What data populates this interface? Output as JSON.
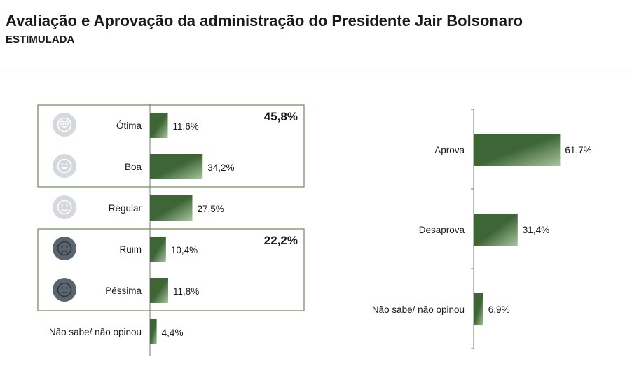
{
  "header": {
    "title": "Avaliação e Aprovação da administração do Presidente Jair Bolsonaro",
    "subtitle": "ESTIMULADA"
  },
  "colors": {
    "bar_dark": "#3d6535",
    "bar_light": "#a9c49e",
    "rule": "#6b8a5a",
    "face_light": "#d5d8dc",
    "face_dark": "#5b6570"
  },
  "chart_data": [
    {
      "type": "bar",
      "orientation": "horizontal",
      "categories": [
        "Ótima",
        "Boa",
        "Regular",
        "Ruim",
        "Péssima",
        "Não sabe/ não opinou"
      ],
      "values": [
        11.6,
        34.2,
        27.5,
        10.4,
        11.8,
        4.4
      ],
      "value_labels": [
        "11,6%",
        "34,2%",
        "27,5%",
        "10,4%",
        "11,8%",
        "4,4%"
      ],
      "icons": [
        "very-happy-face-icon",
        "happy-face-icon",
        "neutral-face-icon",
        "sad-face-icon",
        "very-sad-face-icon",
        ""
      ],
      "groups": [
        {
          "members": [
            "Ótima",
            "Boa"
          ],
          "total_label": "45,8%"
        },
        {
          "members": [
            "Ruim",
            "Péssima"
          ],
          "total_label": "22,2%"
        }
      ]
    },
    {
      "type": "bar",
      "orientation": "horizontal",
      "categories": [
        "Aprova",
        "Desaprova",
        "Não sabe/ não opinou"
      ],
      "values": [
        61.7,
        31.4,
        6.9
      ],
      "value_labels": [
        "61,7%",
        "31,4%",
        "6,9%"
      ]
    }
  ]
}
